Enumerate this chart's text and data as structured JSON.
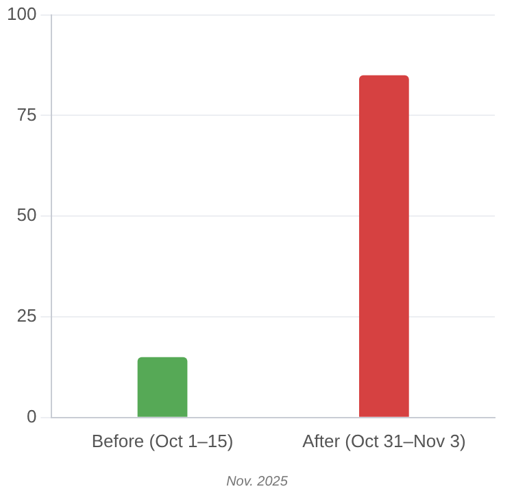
{
  "chart_data": {
    "type": "bar",
    "categories": [
      "Before (Oct 1–15)",
      "After (Oct 31–Nov 3)"
    ],
    "values": [
      15,
      85
    ],
    "colors": [
      "#56a956",
      "#d64141"
    ],
    "ylim": [
      0,
      100
    ],
    "yticks": [
      0,
      25,
      50,
      75,
      100
    ],
    "grid": "y",
    "legend": false,
    "annotations": [
      "Nov. 2025"
    ]
  }
}
